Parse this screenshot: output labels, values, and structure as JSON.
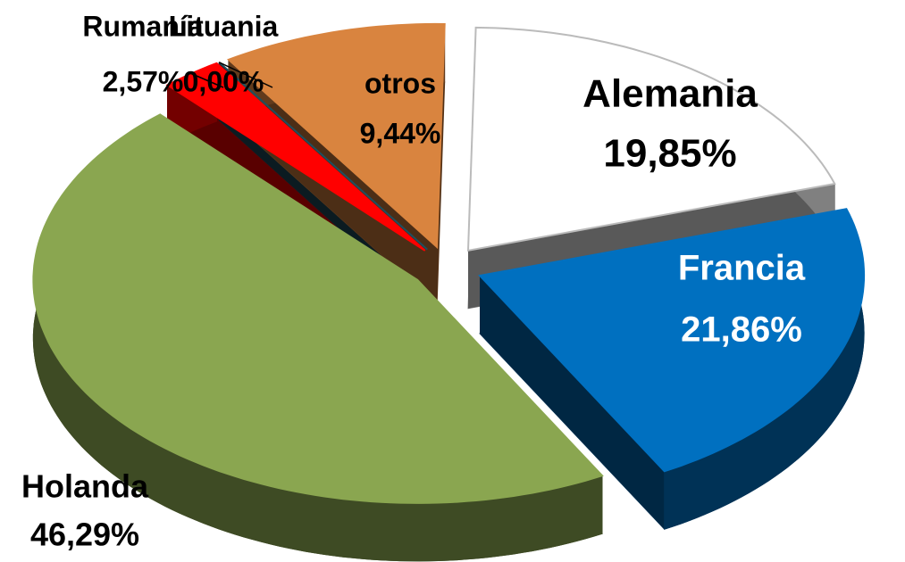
{
  "chart_data": {
    "type": "pie",
    "categories": [
      "Alemania",
      "Francia",
      "Holanda",
      "Rumanía",
      "Lituania",
      "otros"
    ],
    "values": [
      19.85,
      21.86,
      46.29,
      2.57,
      0.0,
      9.44
    ],
    "value_labels": [
      "19,85%",
      "21,86%",
      "46,29%",
      "2,57%",
      "0,00%",
      "9,44%"
    ],
    "colors": [
      "#ffffff",
      "#0070c0",
      "#8aa650",
      "#ff0000",
      "#1f4e5f",
      "#d9843f"
    ]
  }
}
